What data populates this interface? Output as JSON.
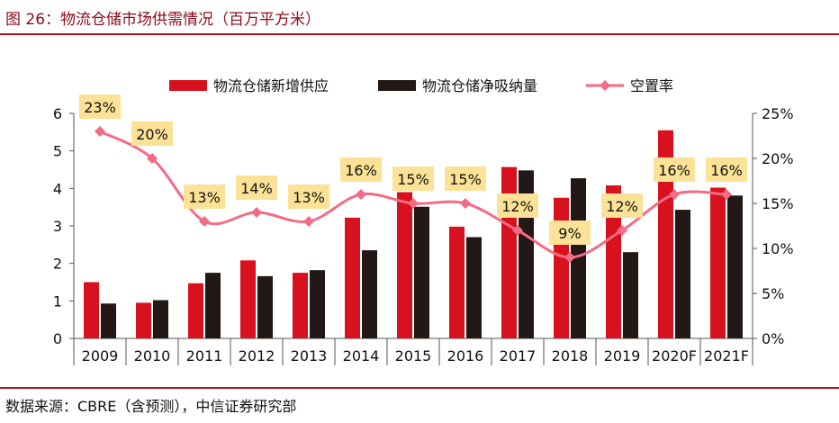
{
  "header": {
    "title": "图 26：物流仓储市场供需情况（百万平方米）"
  },
  "footer": {
    "source": "数据来源：CBRE（含预测），中信证券研究部"
  },
  "colors": {
    "supply": "#d8111e",
    "absorption": "#231815",
    "vacancy": "#f36b86",
    "label_bg": "#fbe296",
    "rule": "#b3131e"
  },
  "chart_data": {
    "type": "bar",
    "categories": [
      "2009",
      "2010",
      "2011",
      "2012",
      "2013",
      "2014",
      "2015",
      "2016",
      "2017",
      "2018",
      "2019",
      "2020F",
      "2021F"
    ],
    "series": [
      {
        "name": "物流仓储新增供应",
        "type": "bar",
        "axis": "left",
        "values": [
          1.5,
          0.95,
          1.47,
          2.08,
          1.75,
          3.22,
          3.9,
          2.98,
          4.57,
          3.75,
          4.08,
          5.55,
          4.02
        ]
      },
      {
        "name": "物流仓储净吸纳量",
        "type": "bar",
        "axis": "left",
        "values": [
          0.93,
          1.02,
          1.75,
          1.66,
          1.82,
          2.35,
          3.51,
          2.7,
          4.48,
          4.27,
          2.3,
          3.43,
          3.81
        ]
      },
      {
        "name": "空置率",
        "type": "line",
        "axis": "right",
        "values": [
          23,
          20,
          13,
          14,
          13,
          16,
          15,
          15,
          12,
          9,
          12,
          16,
          16
        ],
        "value_labels": [
          "23%",
          "20%",
          "13%",
          "14%",
          "13%",
          "16%",
          "15%",
          "15%",
          "12%",
          "9%",
          "12%",
          "16%",
          "16%"
        ]
      }
    ],
    "left_axis": {
      "ylim": [
        0,
        6
      ],
      "ticks": [
        "0",
        "1",
        "2",
        "3",
        "4",
        "5",
        "6"
      ]
    },
    "right_axis": {
      "ylim": [
        0,
        25
      ],
      "ticks": [
        "0%",
        "5%",
        "10%",
        "15%",
        "20%",
        "25%"
      ]
    },
    "legend_position": "top-center",
    "grid": false
  }
}
